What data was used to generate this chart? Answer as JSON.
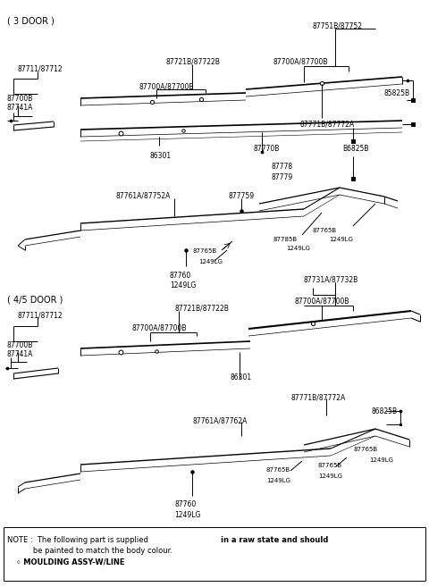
{
  "bg_color": "#ffffff",
  "fig_width": 4.8,
  "fig_height": 6.57,
  "dpi": 100,
  "title_3door": "( 3 DOOR )",
  "title_45door": "( 4/5 DOOR )",
  "note_text": "NOTE :  The following part is supplied  in a raw state and should\n           be painted to match the body colour.",
  "note_bullet": "◦ MOULDING ASSY-W/LINE"
}
